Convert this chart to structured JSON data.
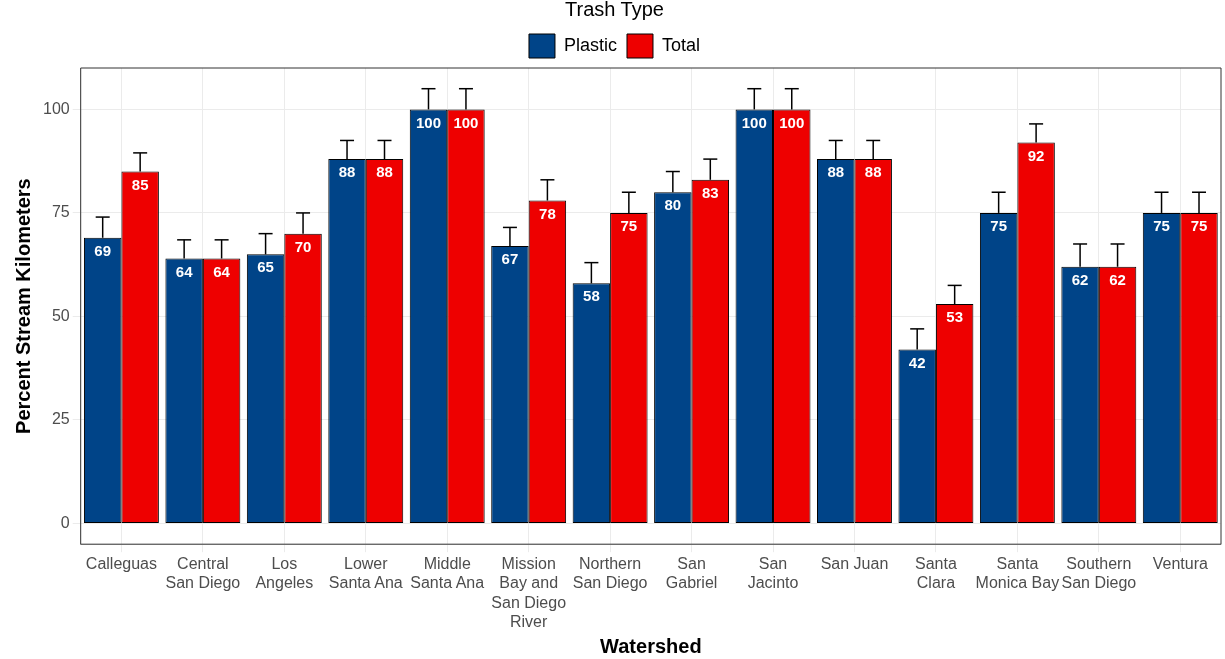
{
  "chart_data": {
    "type": "bar",
    "categories": [
      "Calleguas",
      "Central\nSan Diego",
      "Los\nAngeles",
      "Lower\nSanta Ana",
      "Middle\nSanta Ana",
      "Mission\nBay and\nSan Diego\nRiver",
      "Northern\nSan Diego",
      "San\nGabriel",
      "San\nJacinto",
      "San Juan",
      "Santa\nClara",
      "Santa\nMonica Bay",
      "Southern\nSan Diego",
      "Ventura"
    ],
    "series": [
      {
        "name": "Plastic",
        "color": "#004488",
        "values": [
          69,
          64,
          65,
          88,
          100,
          67,
          58,
          80,
          100,
          88,
          42,
          75,
          62,
          75
        ],
        "errors": [
          [
            69,
            74
          ],
          [
            64,
            68.5
          ],
          [
            65,
            70
          ],
          [
            88,
            92.5
          ],
          [
            100,
            105
          ],
          [
            67,
            71.5
          ],
          [
            58,
            63
          ],
          [
            80,
            85
          ],
          [
            100,
            105
          ],
          [
            88,
            92.5
          ],
          [
            42,
            47
          ],
          [
            75,
            80
          ],
          [
            62,
            67.5
          ],
          [
            75,
            80
          ]
        ]
      },
      {
        "name": "Total",
        "color": "#ee0000",
        "values": [
          85,
          64,
          70,
          88,
          100,
          78,
          75,
          83,
          100,
          88,
          53,
          92,
          62,
          75
        ],
        "errors": [
          [
            85,
            89.5
          ],
          [
            64,
            68.5
          ],
          [
            70,
            75
          ],
          [
            88,
            92.5
          ],
          [
            100,
            105
          ],
          [
            78,
            83
          ],
          [
            75,
            80
          ],
          [
            83,
            88
          ],
          [
            100,
            105
          ],
          [
            88,
            92.5
          ],
          [
            53,
            57.5
          ],
          [
            92,
            96.5
          ],
          [
            62,
            67.5
          ],
          [
            75,
            80
          ]
        ]
      }
    ],
    "xlabel": "Watershed",
    "ylabel": "Percent Stream Kilometers",
    "legend_title": "Trash Type",
    "ylim": [
      -5,
      110
    ],
    "yticks": [
      0,
      25,
      50,
      75,
      100
    ],
    "grid": true,
    "legend": "top",
    "data_labels": true
  }
}
